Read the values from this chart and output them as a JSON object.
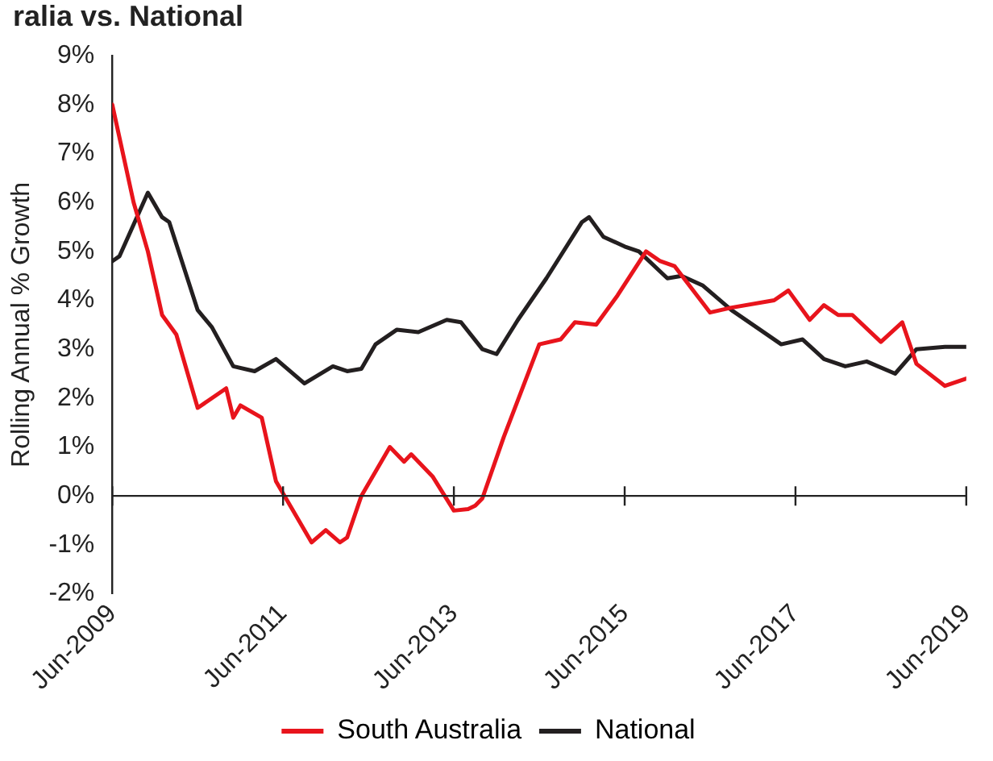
{
  "chart_data": {
    "type": "line",
    "title": "ralia vs. National",
    "ylabel": "Rolling Annual % Growth",
    "xlim": [
      "2009-06",
      "2019-06"
    ],
    "xticks": [
      {
        "value": "2009-06",
        "label": "Jun-2009"
      },
      {
        "value": "2011-06",
        "label": "Jun-2011"
      },
      {
        "value": "2013-06",
        "label": "Jun-2013"
      },
      {
        "value": "2015-06",
        "label": "Jun-2015"
      },
      {
        "value": "2017-06",
        "label": "Jun-2017"
      },
      {
        "value": "2019-06",
        "label": "Jun-2019"
      }
    ],
    "ylim": [
      -2,
      9
    ],
    "yticks": [
      {
        "value": -2,
        "label": "-2%"
      },
      {
        "value": -1,
        "label": "-1%"
      },
      {
        "value": 0,
        "label": "0%"
      },
      {
        "value": 1,
        "label": "1%"
      },
      {
        "value": 2,
        "label": "2%"
      },
      {
        "value": 3,
        "label": "3%"
      },
      {
        "value": 4,
        "label": "4%"
      },
      {
        "value": 5,
        "label": "5%"
      },
      {
        "value": 6,
        "label": "6%"
      },
      {
        "value": 7,
        "label": "7%"
      },
      {
        "value": 8,
        "label": "8%"
      },
      {
        "value": 9,
        "label": "9%"
      }
    ],
    "grid": false,
    "ref_lines": [
      {
        "axis": "y",
        "value": 0,
        "color": "#222222",
        "line_style": "solid"
      }
    ],
    "legend": "bottom",
    "marker": "none",
    "line_style": "solid",
    "series": [
      {
        "name": "South Australia",
        "color": "#e8141c",
        "x": [
          "2009-06",
          "2009-09",
          "2009-11",
          "2010-01",
          "2010-03",
          "2010-06",
          "2010-10",
          "2010-11",
          "2010-12",
          "2011-03",
          "2011-05",
          "2011-10",
          "2011-12",
          "2012-02",
          "2012-03",
          "2012-05",
          "2012-09",
          "2012-11",
          "2012-12",
          "2013-03",
          "2013-06",
          "2013-08",
          "2013-09",
          "2013-10",
          "2014-01",
          "2014-06",
          "2014-09",
          "2014-11",
          "2015-02",
          "2015-05",
          "2015-09",
          "2015-11",
          "2016-01",
          "2016-06",
          "2016-09",
          "2017-03",
          "2017-05",
          "2017-08",
          "2017-10",
          "2017-12",
          "2018-02",
          "2018-06",
          "2018-09",
          "2018-11",
          "2019-03",
          "2019-06"
        ],
        "values": [
          8.0,
          6.0,
          5.0,
          3.7,
          3.3,
          1.8,
          2.2,
          1.6,
          1.85,
          1.6,
          0.3,
          -0.95,
          -0.7,
          -0.95,
          -0.85,
          0.0,
          1.0,
          0.7,
          0.85,
          0.4,
          -0.3,
          -0.27,
          -0.2,
          -0.05,
          1.2,
          3.1,
          3.2,
          3.55,
          3.5,
          4.1,
          5.0,
          4.8,
          4.7,
          3.75,
          3.85,
          4.0,
          4.2,
          3.6,
          3.9,
          3.7,
          3.7,
          3.15,
          3.55,
          2.7,
          2.25,
          2.4
        ]
      },
      {
        "name": "National",
        "color": "#231f20",
        "x": [
          "2009-06",
          "2009-07",
          "2009-11",
          "2010-01",
          "2010-02",
          "2010-06",
          "2010-08",
          "2010-11",
          "2011-02",
          "2011-05",
          "2011-09",
          "2012-01",
          "2012-03",
          "2012-05",
          "2012-07",
          "2012-10",
          "2013-01",
          "2013-05",
          "2013-07",
          "2013-10",
          "2013-12",
          "2014-03",
          "2014-07",
          "2014-12",
          "2015-01",
          "2015-03",
          "2015-06",
          "2015-08",
          "2015-12",
          "2016-02",
          "2016-05",
          "2016-09",
          "2017-01",
          "2017-04",
          "2017-07",
          "2017-10",
          "2018-01",
          "2018-04",
          "2018-08",
          "2018-11",
          "2019-03",
          "2019-06"
        ],
        "values": [
          4.8,
          4.9,
          6.2,
          5.7,
          5.6,
          3.8,
          3.45,
          2.65,
          2.55,
          2.8,
          2.3,
          2.65,
          2.55,
          2.6,
          3.1,
          3.4,
          3.35,
          3.6,
          3.55,
          3.0,
          2.9,
          3.6,
          4.45,
          5.6,
          5.7,
          5.3,
          5.1,
          5.0,
          4.45,
          4.5,
          4.3,
          3.8,
          3.4,
          3.1,
          3.2,
          2.8,
          2.65,
          2.75,
          2.5,
          3.0,
          3.05,
          3.05
        ]
      }
    ]
  }
}
